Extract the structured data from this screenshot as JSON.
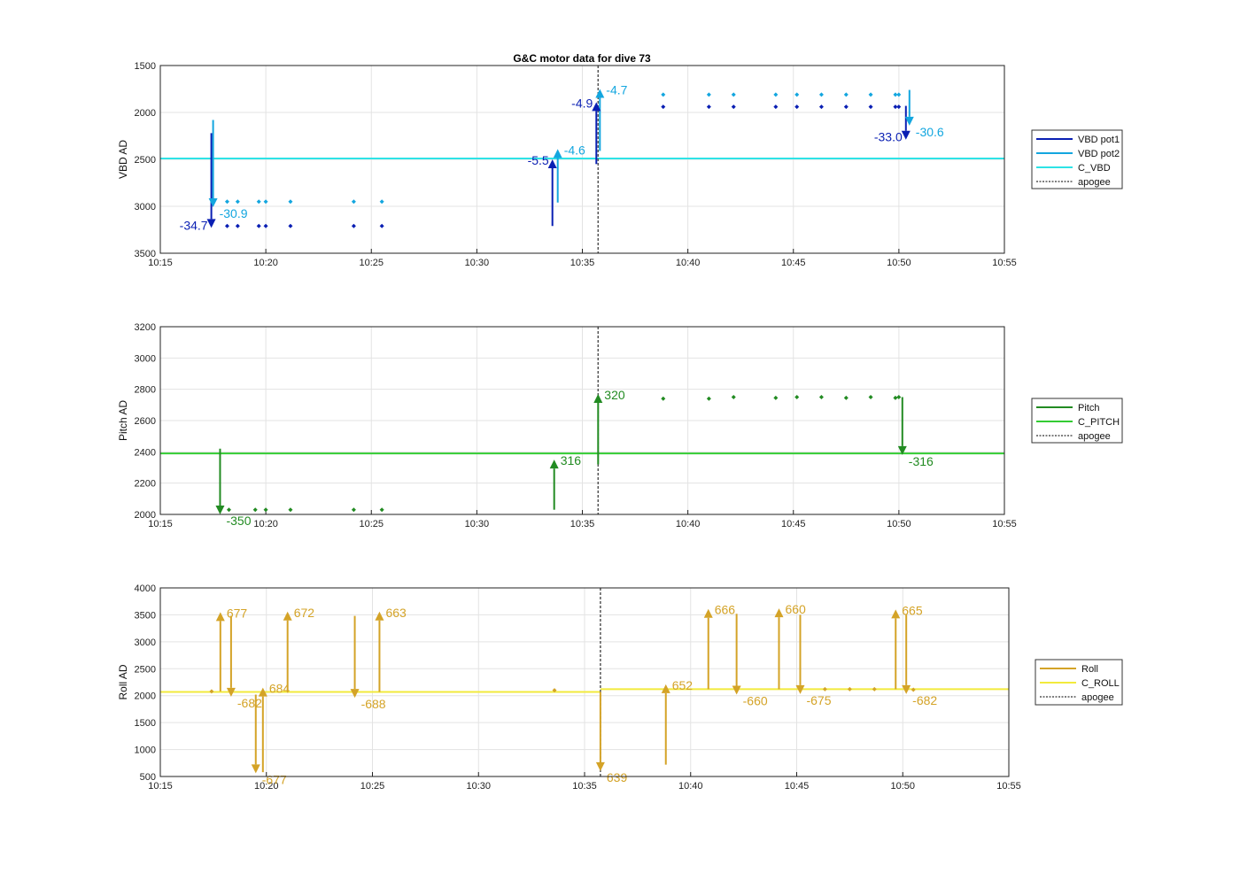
{
  "title": "G&C motor data for dive 73",
  "x_ticks": [
    "10:15",
    "10:20",
    "10:25",
    "10:30",
    "10:35",
    "10:40",
    "10:45",
    "10:50",
    "10:55"
  ],
  "colors": {
    "vbd_pot1": "#0a1fb3",
    "vbd_pot2": "#13a6df",
    "c_vbd": "#2ee3e6",
    "pitch": "#228b22",
    "c_pitch": "#33cc33",
    "roll": "#d4a327",
    "c_roll": "#f2ea3c",
    "apogee": "#555555",
    "grid": "#e3e3e3"
  },
  "chart_data": [
    {
      "type": "line",
      "name": "vbd",
      "ylabel": "VBD AD",
      "xlim": [
        10.25,
        10.9167
      ],
      "ylim": [
        1500,
        3500
      ],
      "y_reversed": true,
      "yticks": [
        1500,
        2000,
        2500,
        3000,
        3500
      ],
      "apogee_time": 10.5958,
      "constant_lines": [
        {
          "series": "C_VBD",
          "value": 2490
        }
      ],
      "legend": {
        "placement": "outside-right",
        "entries": [
          {
            "label": "VBD pot1",
            "style": "vbd_pot1"
          },
          {
            "label": "VBD pot2",
            "style": "vbd_pot2"
          },
          {
            "label": "C_VBD",
            "style": "c_vbd"
          },
          {
            "label": "apogee",
            "style": "apogee"
          }
        ]
      },
      "arrows": [
        {
          "series": "pot1",
          "t": 10.2903,
          "from": 2220,
          "to": 3230,
          "label": "-34.7"
        },
        {
          "series": "pot2",
          "t": 10.2917,
          "from": 2080,
          "to": 3010,
          "label": "-30.9"
        },
        {
          "series": "pot1",
          "t": 10.5597,
          "from": 3210,
          "to": 2500,
          "label": "-5.5"
        },
        {
          "series": "pot2",
          "t": 10.5639,
          "from": 2960,
          "to": 2390,
          "label": "-4.6"
        },
        {
          "series": "pot1",
          "t": 10.5944,
          "from": 2550,
          "to": 1890,
          "label": "-4.9"
        },
        {
          "series": "pot2",
          "t": 10.5972,
          "from": 2410,
          "to": 1750,
          "label": "-4.7"
        },
        {
          "series": "pot1",
          "t": 10.8389,
          "from": 1930,
          "to": 2290,
          "label": "-33.0"
        },
        {
          "series": "pot2",
          "t": 10.8417,
          "from": 1760,
          "to": 2140,
          "label": "-30.6"
        }
      ],
      "points": {
        "pot1": {
          "t": [
            10.3028,
            10.3111,
            10.3278,
            10.3333,
            10.3528,
            10.4028,
            10.425,
            10.6472,
            10.6833,
            10.7028,
            10.7361,
            10.7528,
            10.7722,
            10.7917,
            10.8111,
            10.8306,
            10.8333
          ],
          "v": [
            3210,
            3210,
            3210,
            3210,
            3210,
            3210,
            3210,
            1940,
            1940,
            1940,
            1940,
            1940,
            1940,
            1940,
            1940,
            1940,
            1940
          ]
        },
        "pot2": {
          "t": [
            10.3028,
            10.3111,
            10.3278,
            10.3333,
            10.3528,
            10.4028,
            10.425,
            10.6472,
            10.6833,
            10.7028,
            10.7361,
            10.7528,
            10.7722,
            10.7917,
            10.8111,
            10.8306,
            10.8333
          ],
          "v": [
            2950,
            2950,
            2950,
            2950,
            2950,
            2950,
            2950,
            1810,
            1810,
            1810,
            1810,
            1810,
            1810,
            1810,
            1810,
            1810,
            1810
          ]
        }
      }
    },
    {
      "type": "line",
      "name": "pitch",
      "ylabel": "Pitch AD",
      "xlim": [
        10.25,
        10.9167
      ],
      "ylim": [
        2000,
        3200
      ],
      "y_reversed": false,
      "yticks": [
        2000,
        2200,
        2400,
        2600,
        2800,
        3000,
        3200
      ],
      "apogee_time": 10.5958,
      "constant_lines": [
        {
          "series": "C_PITCH",
          "value": 2390
        }
      ],
      "legend": {
        "placement": "outside-right",
        "entries": [
          {
            "label": "Pitch",
            "style": "pitch"
          },
          {
            "label": "C_PITCH",
            "style": "c_pitch"
          },
          {
            "label": "apogee",
            "style": "apogee"
          }
        ]
      },
      "arrows": [
        {
          "series": "pitch",
          "t": 10.2972,
          "from": 2420,
          "to": 2000,
          "label": "-350"
        },
        {
          "series": "pitch",
          "t": 10.5611,
          "from": 2030,
          "to": 2350,
          "label": "316"
        },
        {
          "series": "pitch",
          "t": 10.5958,
          "from": 2320,
          "to": 2770,
          "label": "320"
        },
        {
          "series": "pitch",
          "t": 10.8361,
          "from": 2750,
          "to": 2380,
          "label": "-316"
        }
      ],
      "points": {
        "pitch": {
          "t": [
            10.3042,
            10.325,
            10.3333,
            10.3528,
            10.4028,
            10.425,
            10.6472,
            10.6833,
            10.7028,
            10.7361,
            10.7528,
            10.7722,
            10.7917,
            10.8111,
            10.8306,
            10.8333
          ],
          "v": [
            2030,
            2030,
            2030,
            2030,
            2030,
            2030,
            2740,
            2740,
            2750,
            2745,
            2750,
            2750,
            2745,
            2750,
            2745,
            2750
          ]
        }
      }
    },
    {
      "type": "line",
      "name": "roll",
      "ylabel": "Roll AD",
      "xlim": [
        10.25,
        10.9167
      ],
      "ylim": [
        500,
        4000
      ],
      "y_reversed": false,
      "yticks": [
        500,
        1000,
        1500,
        2000,
        2500,
        3000,
        3500,
        4000
      ],
      "apogee_time": 10.5958,
      "constant_lines": [
        {
          "series": "C_ROLL",
          "value": 2070,
          "t_end": 10.5958
        },
        {
          "series": "C_ROLL",
          "value": 2120,
          "t_start": 10.5958
        }
      ],
      "legend": {
        "placement": "outside-right",
        "entries": [
          {
            "label": "Roll",
            "style": "roll"
          },
          {
            "label": "C_ROLL",
            "style": "c_roll"
          },
          {
            "label": "apogee",
            "style": "apogee"
          }
        ]
      },
      "arrows": [
        {
          "series": "roll",
          "t": 10.2972,
          "from": 2080,
          "to": 3550,
          "label": "677"
        },
        {
          "series": "roll",
          "t": 10.3056,
          "from": 3480,
          "to": 1980,
          "label": "-682"
        },
        {
          "series": "roll",
          "t": 10.325,
          "from": 2020,
          "to": 560,
          "label": "-677"
        },
        {
          "series": "roll",
          "t": 10.3306,
          "from": 580,
          "to": 2150,
          "label": "684"
        },
        {
          "series": "roll",
          "t": 10.35,
          "from": 2070,
          "to": 3560,
          "label": "672"
        },
        {
          "series": "roll",
          "t": 10.4028,
          "from": 3480,
          "to": 1960,
          "label": "-688"
        },
        {
          "series": "roll",
          "t": 10.4222,
          "from": 2070,
          "to": 3560,
          "label": "663"
        },
        {
          "series": "roll",
          "t": 10.5958,
          "from": 2070,
          "to": 600,
          "label": "639"
        },
        {
          "series": "roll",
          "t": 10.6472,
          "from": 720,
          "to": 2210,
          "label": "652"
        },
        {
          "series": "roll",
          "t": 10.6806,
          "from": 2120,
          "to": 3610,
          "label": "666"
        },
        {
          "series": "roll",
          "t": 10.7028,
          "from": 3520,
          "to": 2020,
          "label": "-660"
        },
        {
          "series": "roll",
          "t": 10.7361,
          "from": 2120,
          "to": 3620,
          "label": "660"
        },
        {
          "series": "roll",
          "t": 10.7528,
          "from": 3500,
          "to": 2030,
          "label": "-675"
        },
        {
          "series": "roll",
          "t": 10.8278,
          "from": 2120,
          "to": 3600,
          "label": "665"
        },
        {
          "series": "roll",
          "t": 10.8361,
          "from": 3500,
          "to": 2030,
          "label": "-682"
        }
      ],
      "points": {
        "roll": {
          "t": [
            10.2903,
            10.5597,
            10.7722,
            10.7917,
            10.8111,
            10.8417
          ],
          "v": [
            2080,
            2100,
            2120,
            2120,
            2120,
            2110
          ]
        }
      }
    }
  ]
}
